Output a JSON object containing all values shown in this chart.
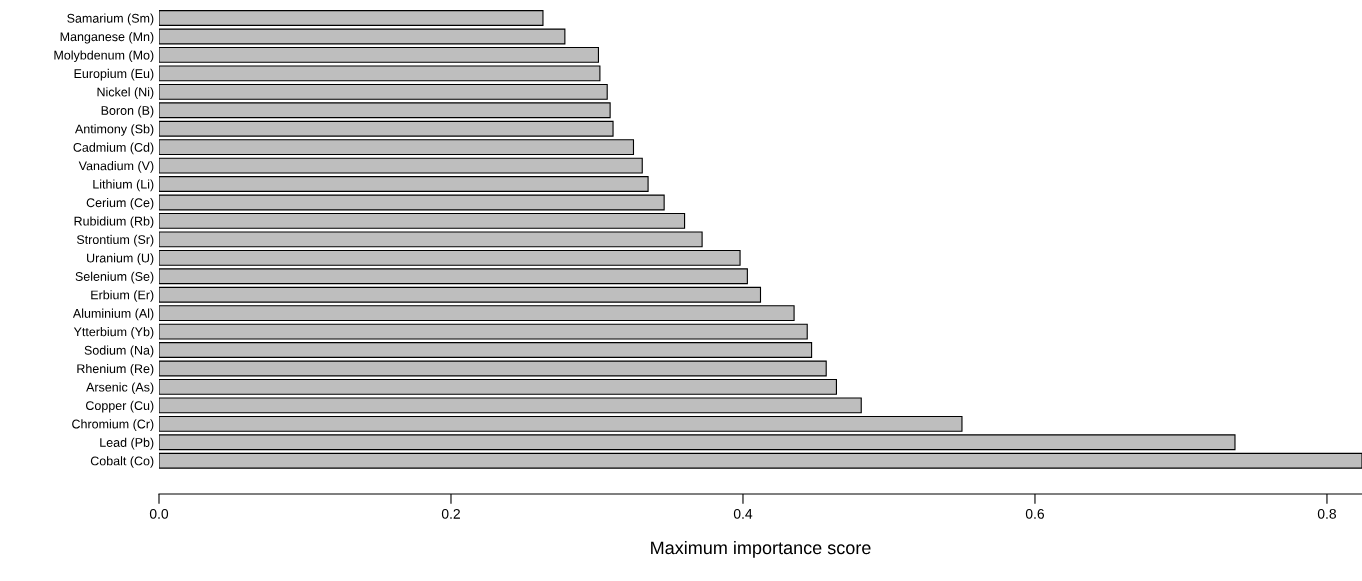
{
  "chart_data": {
    "type": "bar",
    "orientation": "horizontal",
    "xlabel": "Maximum importance score",
    "categories": [
      "Samarium (Sm)",
      "Manganese (Mn)",
      "Molybdenum (Mo)",
      "Europium (Eu)",
      "Nickel (Ni)",
      "Boron (B)",
      "Antimony (Sb)",
      "Cadmium (Cd)",
      "Vanadium (V)",
      "Lithium (Li)",
      "Cerium (Ce)",
      "Rubidium (Rb)",
      "Strontium (Sr)",
      "Uranium (U)",
      "Selenium (Se)",
      "Erbium (Er)",
      "Aluminium (Al)",
      "Ytterbium (Yb)",
      "Sodium (Na)",
      "Rhenium (Re)",
      "Arsenic (As)",
      "Copper (Cu)",
      "Chromium (Cr)",
      "Lead (Pb)",
      "Cobalt (Co)"
    ],
    "values": [
      0.263,
      0.278,
      0.301,
      0.302,
      0.307,
      0.309,
      0.311,
      0.325,
      0.331,
      0.335,
      0.346,
      0.36,
      0.372,
      0.398,
      0.403,
      0.412,
      0.435,
      0.444,
      0.447,
      0.457,
      0.464,
      0.481,
      0.55,
      0.737,
      0.824
    ],
    "color": "#bebebe",
    "xlim": [
      0,
      0.824
    ],
    "xticks": [
      {
        "value": 0,
        "label": "0.0"
      },
      {
        "value": 0.2,
        "label": "0.2"
      },
      {
        "value": 0.4,
        "label": "0.4"
      },
      {
        "value": 0.6,
        "label": "0.6"
      },
      {
        "value": 0.8,
        "label": "0.8"
      }
    ],
    "grid": false
  }
}
